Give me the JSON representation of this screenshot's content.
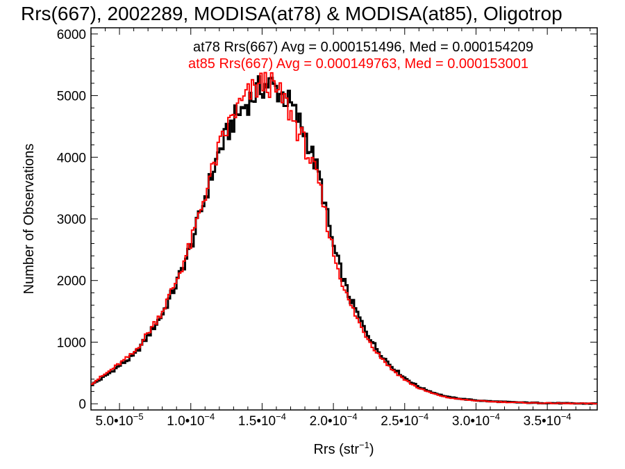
{
  "chart_data": {
    "type": "line",
    "title": "Rrs(667), 2002289, MODISA(at78) & MODISA(at85), Oligotrop",
    "xlabel": {
      "base": "Rrs (str",
      "sup": "−1",
      "end": ")"
    },
    "ylabel": "Number of Observations",
    "xlim": [
      3e-05,
      0.000385
    ],
    "ylim": [
      -100,
      6100
    ],
    "x_ticks": [
      {
        "value": 5e-05,
        "mantissa": "5.0•10",
        "exp": "−5"
      },
      {
        "value": 0.0001,
        "mantissa": "1.0•10",
        "exp": "−4"
      },
      {
        "value": 0.00015,
        "mantissa": "1.5•10",
        "exp": "−4"
      },
      {
        "value": 0.0002,
        "mantissa": "2.0•10",
        "exp": "−4"
      },
      {
        "value": 0.00025,
        "mantissa": "2.5•10",
        "exp": "−4"
      },
      {
        "value": 0.0003,
        "mantissa": "3.0•10",
        "exp": "−4"
      },
      {
        "value": 0.00035,
        "mantissa": "3.5•10",
        "exp": "−4"
      }
    ],
    "y_ticks": [
      {
        "value": 0,
        "label": "0"
      },
      {
        "value": 1000,
        "label": "1000"
      },
      {
        "value": 2000,
        "label": "2000"
      },
      {
        "value": 3000,
        "label": "3000"
      },
      {
        "value": 4000,
        "label": "4000"
      },
      {
        "value": 5000,
        "label": "5000"
      },
      {
        "value": 6000,
        "label": "6000"
      }
    ],
    "bin_width": 1.5e-06,
    "legend": [
      {
        "text": "at78 Rrs(667) Avg = 0.000151496, Med = 0.000154209",
        "color": "#000000"
      },
      {
        "text": "at85 Rrs(667) Avg = 0.000149763, Med = 0.000153001",
        "color": "#ff0000"
      }
    ],
    "series": [
      {
        "color": "#000000",
        "x": [
          3e-05,
          4e-05,
          5e-05,
          6e-05,
          7e-05,
          8e-05,
          9e-05,
          0.0001,
          0.00011,
          0.00012,
          0.00013,
          0.00014,
          0.00015,
          0.000155,
          0.00016,
          0.000165,
          0.00017,
          0.00018,
          0.00019,
          0.0002,
          0.00021,
          0.00022,
          0.00023,
          0.00024,
          0.00025,
          0.00026,
          0.00027,
          0.00028,
          0.00029,
          0.0003,
          0.00031,
          0.00032,
          0.00033,
          0.00034,
          0.00035,
          0.00036,
          0.00037,
          0.000385
        ],
        "values": [
          300,
          450,
          620,
          780,
          1100,
          1450,
          1950,
          2550,
          3350,
          4100,
          4600,
          4900,
          5150,
          5200,
          5100,
          5000,
          4850,
          4400,
          3700,
          2550,
          1800,
          1300,
          900,
          620,
          420,
          270,
          180,
          110,
          80,
          55,
          40,
          30,
          22,
          15,
          12,
          8,
          5,
          3
        ]
      },
      {
        "color": "#ff0000",
        "x": [
          3e-05,
          4e-05,
          5e-05,
          6e-05,
          7e-05,
          8e-05,
          9e-05,
          0.0001,
          0.00011,
          0.00012,
          0.00013,
          0.00014,
          0.00015,
          0.000155,
          0.00016,
          0.000165,
          0.00017,
          0.00018,
          0.00019,
          0.0002,
          0.00021,
          0.00022,
          0.00023,
          0.00024,
          0.00025,
          0.00026,
          0.00027,
          0.00028,
          0.00029,
          0.0003,
          0.00031,
          0.00032,
          0.00033,
          0.00034,
          0.00035,
          0.00036,
          0.00037,
          0.000385
        ],
        "values": [
          320,
          480,
          650,
          820,
          1150,
          1500,
          2000,
          2600,
          3400,
          4150,
          4700,
          5000,
          5200,
          5200,
          5050,
          4950,
          4700,
          4200,
          3550,
          2450,
          1700,
          1220,
          850,
          580,
          390,
          250,
          165,
          100,
          70,
          50,
          36,
          27,
          20,
          14,
          10,
          7,
          5,
          3
        ]
      }
    ]
  }
}
